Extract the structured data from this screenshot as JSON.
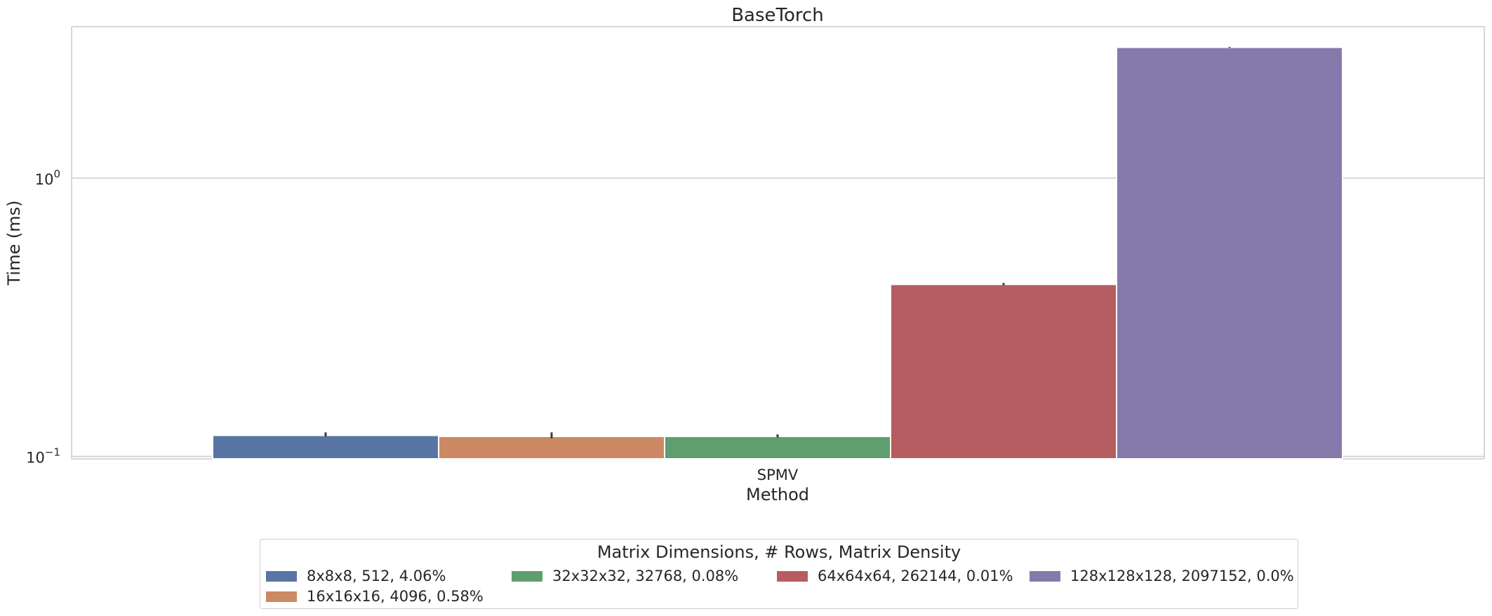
{
  "chart_data": {
    "type": "bar",
    "title": "BaseTorch",
    "xlabel": "Method",
    "ylabel": "Time (ms)",
    "categories": [
      "SPMV"
    ],
    "yscale": "log",
    "ylim": [
      0.098,
      3.5
    ],
    "yticks": [
      {
        "value": 0.1,
        "base": "10",
        "exp": "−1"
      },
      {
        "value": 1,
        "base": "10",
        "exp": "0"
      }
    ],
    "grid": "horizontal",
    "legend_title": "Matrix Dimensions, # Rows, Matrix Density",
    "legend_position": "below",
    "series": [
      {
        "name": "8x8x8, 512, 4.06%",
        "values": [
          0.119
        ],
        "error": [
          [
            0.118,
            0.122
          ]
        ],
        "color": "#5875a4"
      },
      {
        "name": "16x16x16, 4096, 0.58%",
        "values": [
          0.118
        ],
        "error": [
          [
            0.116,
            0.122
          ]
        ],
        "color": "#cc8963"
      },
      {
        "name": "32x32x32, 32768, 0.08%",
        "values": [
          0.118
        ],
        "error": [
          [
            0.117,
            0.12
          ]
        ],
        "color": "#5f9e6e"
      },
      {
        "name": "64x64x64, 262144, 0.01%",
        "values": [
          0.415
        ],
        "error": [
          [
            0.412,
            0.42
          ]
        ],
        "color": "#b55d60"
      },
      {
        "name": "128x128x128, 2097152, 0.0%",
        "values": [
          2.95
        ],
        "error": [
          [
            2.94,
            2.96
          ]
        ],
        "color": "#857aab"
      }
    ]
  }
}
